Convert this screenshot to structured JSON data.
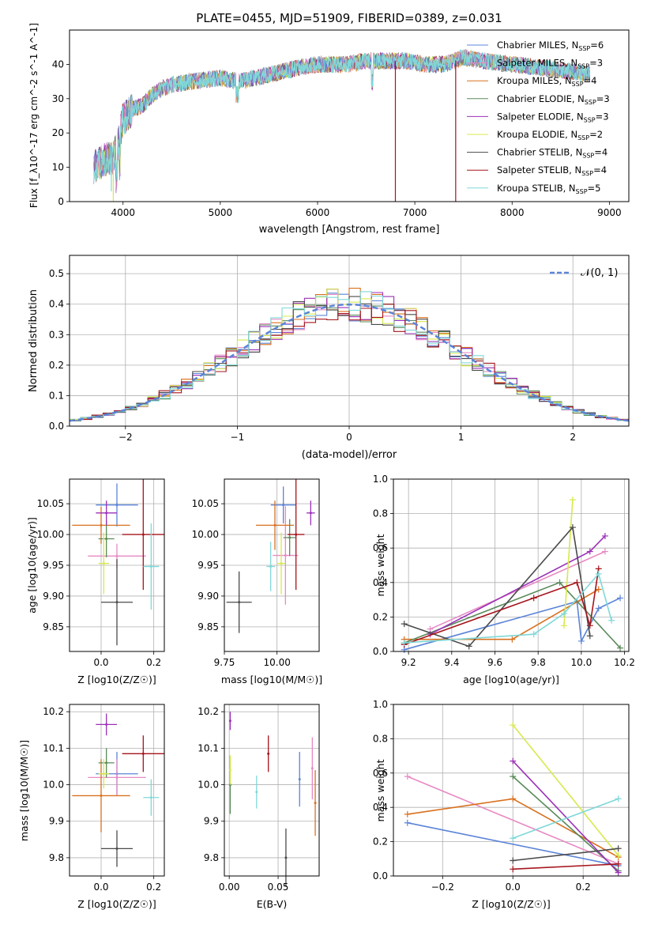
{
  "title": "PLATE=0455, MJD=51909, FIBERID=0389, z=0.031",
  "colors": {
    "chabrier_miles": "#5b84d8",
    "salpeter_miles": "#e78ac3",
    "kroupa_miles": "#d9711f",
    "chabrier_elodie": "#5a8a5a",
    "salpeter_elodie": "#9b30b8",
    "kroupa_elodie": "#d8e84e",
    "chabrier_stelib": "#4a4a4a",
    "salpeter_stelib": "#a6141c",
    "kroupa_stelib": "#7fd8d8",
    "normal_curve": "#5b84d8"
  },
  "chart_data": [
    {
      "type": "line",
      "panel": "spectrum",
      "xlabel": "wavelength [Angstrom, rest frame]",
      "ylabel": "Flux [f_λ10^-17 erg cm^-2 s^-1 A^-1]",
      "xlim": [
        3450,
        9200
      ],
      "ylim": [
        0,
        50
      ],
      "xticks": [
        "4000",
        "5000",
        "6000",
        "7000",
        "8000",
        "9000"
      ],
      "yticks": [
        "0",
        "10",
        "20",
        "30",
        "40"
      ],
      "grid": false,
      "legend_position": "upper right",
      "legend": [
        {
          "label": "Chabrier MILES, N_SSP=6",
          "color_key": "chabrier_miles"
        },
        {
          "label": "Salpeter MILES, N_SSP=3",
          "color_key": "salpeter_miles"
        },
        {
          "label": "Kroupa MILES, N_SSP=4",
          "color_key": "kroupa_miles"
        },
        {
          "label": "Chabrier ELODIE, N_SSP=3",
          "color_key": "chabrier_elodie"
        },
        {
          "label": "Salpeter ELODIE, N_SSP=3",
          "color_key": "salpeter_elodie"
        },
        {
          "label": "Kroupa ELODIE, N_SSP=2",
          "color_key": "kroupa_elodie"
        },
        {
          "label": "Chabrier STELIB, N_SSP=4",
          "color_key": "chabrier_stelib"
        },
        {
          "label": "Salpeter STELIB, N_SSP=4",
          "color_key": "salpeter_stelib"
        },
        {
          "label": "Kroupa STELIB, N_SSP=5",
          "color_key": "kroupa_stelib"
        }
      ],
      "continuum": {
        "x": [
          3700,
          3800,
          3900,
          3950,
          4000,
          4100,
          4200,
          4300,
          4400,
          4500,
          4700,
          5000,
          5200,
          5500,
          5800,
          6000,
          6300,
          6500,
          6700,
          6900,
          7100,
          7300,
          7500,
          7700,
          8000,
          8300,
          8600,
          8800
        ],
        "y": [
          10,
          12,
          13,
          17,
          24,
          27,
          28,
          31,
          33,
          34,
          35,
          36,
          35,
          37,
          39,
          40,
          40,
          41,
          41,
          41,
          40,
          40,
          42,
          41,
          40,
          39,
          38,
          37
        ]
      },
      "features": [
        {
          "model": "kroupa_elodie",
          "x": 3900,
          "y_min": 0
        },
        {
          "model": "salpeter_stelib",
          "x": 6800,
          "y_min": 0
        },
        {
          "model": "salpeter_stelib",
          "x": 7420,
          "y_min": 0
        },
        {
          "model": "kroupa_stelib",
          "x": 3880,
          "y_min": 3
        }
      ]
    },
    {
      "type": "histogram",
      "panel": "residuals",
      "xlabel": "(data-model)/error",
      "ylabel": "Normed distribution",
      "xlim": [
        -2.5,
        2.5
      ],
      "ylim": [
        0,
        0.56
      ],
      "xticks": [
        "−2",
        "−1",
        "0",
        "1",
        "2"
      ],
      "yticks": [
        "0.0",
        "0.1",
        "0.2",
        "0.3",
        "0.4",
        "0.5"
      ],
      "grid": true,
      "bin_width": 0.1,
      "legend": [
        {
          "label": "𝒩(0, 1)",
          "color_key": "normal_curve",
          "style": "dashed"
        }
      ],
      "legend_position": "upper right"
    },
    {
      "type": "scatter",
      "panel": "age_vs_Z",
      "xlabel": "Z [log10(Z/Z☉)]",
      "ylabel": "age  [log10(age/yr)]",
      "xlim": [
        -0.12,
        0.24
      ],
      "ylim": [
        9.81,
        10.09
      ],
      "xticks": [
        "0.0",
        "0.2"
      ],
      "yticks": [
        "9.85",
        "9.90",
        "9.95",
        "10.00",
        "10.05"
      ],
      "grid": true,
      "points": [
        {
          "model": "chabrier_miles",
          "x": 0.06,
          "y": 10.048,
          "xerr": 0.08,
          "yerr": 0.035
        },
        {
          "model": "salpeter_miles",
          "x": 0.06,
          "y": 9.965,
          "xerr": 0.11,
          "yerr": 0.02
        },
        {
          "model": "kroupa_miles",
          "x": 0.0,
          "y": 10.015,
          "xerr": 0.11,
          "yerr": 0.03
        },
        {
          "model": "chabrier_elodie",
          "x": 0.02,
          "y": 9.993,
          "xerr": 0.03,
          "yerr": 0.03
        },
        {
          "model": "salpeter_elodie",
          "x": 0.02,
          "y": 10.035,
          "xerr": 0.04,
          "yerr": 0.02
        },
        {
          "model": "kroupa_elodie",
          "x": 0.01,
          "y": 9.953,
          "xerr": 0.02,
          "yerr": 0.05
        },
        {
          "model": "chabrier_stelib",
          "x": 0.06,
          "y": 9.89,
          "xerr": 0.06,
          "yerr": 0.07
        },
        {
          "model": "salpeter_stelib",
          "x": 0.16,
          "y": 10.0,
          "xerr": 0.08,
          "yerr": 0.09
        },
        {
          "model": "kroupa_stelib",
          "x": 0.19,
          "y": 9.948,
          "xerr": 0.03,
          "yerr": 0.07
        }
      ]
    },
    {
      "type": "scatter",
      "panel": "age_vs_mass",
      "xlabel": "mass [log10(M/M☉)]",
      "ylabel": "",
      "xlim": [
        9.75,
        10.2
      ],
      "ylim": [
        9.81,
        10.09
      ],
      "xticks": [
        "9.75",
        "10.00"
      ],
      "yticks": [
        "9.85",
        "9.90",
        "9.95",
        "10.00",
        "10.05"
      ],
      "grid": true,
      "points": [
        {
          "model": "chabrier_miles",
          "x": 10.03,
          "y": 10.048,
          "xerr": 0.06,
          "yerr": 0.03
        },
        {
          "model": "salpeter_miles",
          "x": 10.04,
          "y": 9.966,
          "xerr": 0.06,
          "yerr": 0.08
        },
        {
          "model": "kroupa_miles",
          "x": 9.99,
          "y": 10.015,
          "xerr": 0.09,
          "yerr": 0.04
        },
        {
          "model": "chabrier_elodie",
          "x": 10.06,
          "y": 9.995,
          "xerr": 0.03,
          "yerr": 0.03
        },
        {
          "model": "salpeter_elodie",
          "x": 10.16,
          "y": 10.035,
          "xerr": 0.02,
          "yerr": 0.02
        },
        {
          "model": "kroupa_elodie",
          "x": 10.02,
          "y": 9.953,
          "xerr": 0.02,
          "yerr": 0.05
        },
        {
          "model": "chabrier_stelib",
          "x": 9.82,
          "y": 9.89,
          "xerr": 0.06,
          "yerr": 0.05
        },
        {
          "model": "salpeter_stelib",
          "x": 10.09,
          "y": 10.0,
          "xerr": 0.04,
          "yerr": 0.09
        },
        {
          "model": "kroupa_stelib",
          "x": 9.97,
          "y": 9.948,
          "xerr": 0.02,
          "yerr": 0.04
        }
      ]
    },
    {
      "type": "line",
      "panel": "mass_weight_vs_age",
      "xlabel": "age  [log10(age/yr)]",
      "ylabel": "mass weight",
      "xlim": [
        9.13,
        10.22
      ],
      "ylim": [
        0,
        1.0
      ],
      "xticks": [
        "9.2",
        "9.4",
        "9.6",
        "9.8",
        "10.0",
        "10.2"
      ],
      "yticks": [
        "0.0",
        "0.2",
        "0.4",
        "0.6",
        "0.8",
        "1.0"
      ],
      "grid": true,
      "series": [
        {
          "model": "chabrier_miles",
          "x": [
            9.18,
            9.98,
            10.0,
            10.08,
            10.18
          ],
          "y": [
            0.01,
            0.29,
            0.06,
            0.25,
            0.31
          ]
        },
        {
          "model": "salpeter_miles",
          "x": [
            9.3,
            10.11
          ],
          "y": [
            0.13,
            0.58
          ]
        },
        {
          "model": "kroupa_miles",
          "x": [
            9.18,
            9.68,
            10.08
          ],
          "y": [
            0.07,
            0.07,
            0.36
          ]
        },
        {
          "model": "chabrier_elodie",
          "x": [
            9.18,
            9.9,
            10.18
          ],
          "y": [
            0.05,
            0.4,
            0.02
          ]
        },
        {
          "model": "salpeter_elodie",
          "x": [
            9.3,
            10.04,
            10.11
          ],
          "y": [
            0.1,
            0.58,
            0.67
          ]
        },
        {
          "model": "kroupa_elodie",
          "x": [
            9.92,
            9.96
          ],
          "y": [
            0.15,
            0.88
          ]
        },
        {
          "model": "chabrier_stelib",
          "x": [
            9.18,
            9.48,
            9.96,
            10.04
          ],
          "y": [
            0.16,
            0.03,
            0.72,
            0.09
          ]
        },
        {
          "model": "salpeter_stelib",
          "x": [
            9.18,
            9.78,
            9.98,
            10.04,
            10.08
          ],
          "y": [
            0.04,
            0.31,
            0.4,
            0.15,
            0.48
          ]
        },
        {
          "model": "kroupa_stelib",
          "x": [
            9.18,
            9.78,
            9.92,
            10.08,
            10.14
          ],
          "y": [
            0.05,
            0.1,
            0.22,
            0.45,
            0.18
          ]
        }
      ]
    },
    {
      "type": "scatter",
      "panel": "mass_vs_Z",
      "xlabel": "Z [log10(Z/Z☉)]",
      "ylabel": "mass [log10(M/M☉)]",
      "xlim": [
        -0.12,
        0.24
      ],
      "ylim": [
        9.75,
        10.22
      ],
      "xticks": [
        "0.0",
        "0.2"
      ],
      "yticks": [
        "9.8",
        "9.9",
        "10.0",
        "10.1",
        "10.2"
      ],
      "grid": true,
      "points": [
        {
          "model": "chabrier_miles",
          "x": 0.06,
          "y": 10.03,
          "xerr": 0.08,
          "yerr": 0.06
        },
        {
          "model": "salpeter_miles",
          "x": 0.06,
          "y": 10.02,
          "xerr": 0.11,
          "yerr": 0.05
        },
        {
          "model": "kroupa_miles",
          "x": 0.0,
          "y": 9.97,
          "xerr": 0.11,
          "yerr": 0.1
        },
        {
          "model": "chabrier_elodie",
          "x": 0.02,
          "y": 10.06,
          "xerr": 0.03,
          "yerr": 0.04
        },
        {
          "model": "salpeter_elodie",
          "x": 0.02,
          "y": 10.165,
          "xerr": 0.04,
          "yerr": 0.03
        },
        {
          "model": "kroupa_elodie",
          "x": 0.01,
          "y": 10.03,
          "xerr": 0.02,
          "yerr": 0.04
        },
        {
          "model": "chabrier_stelib",
          "x": 0.06,
          "y": 9.825,
          "xerr": 0.06,
          "yerr": 0.05
        },
        {
          "model": "salpeter_stelib",
          "x": 0.16,
          "y": 10.085,
          "xerr": 0.08,
          "yerr": 0.05
        },
        {
          "model": "kroupa_stelib",
          "x": 0.19,
          "y": 9.965,
          "xerr": 0.03,
          "yerr": 0.05
        }
      ]
    },
    {
      "type": "scatter",
      "panel": "mass_vs_ebv",
      "xlabel": "E(B-V)",
      "ylabel": "",
      "xlim": [
        -0.005,
        0.092
      ],
      "ylim": [
        9.75,
        10.22
      ],
      "xticks": [
        "0.00",
        "0.05"
      ],
      "yticks": [
        "9.8",
        "9.9",
        "10.0",
        "10.1",
        "10.2"
      ],
      "grid": true,
      "points": [
        {
          "model": "chabrier_miles",
          "x": 0.072,
          "y": 10.015,
          "xerr": 0,
          "yerr": 0.075
        },
        {
          "model": "salpeter_miles",
          "x": 0.085,
          "y": 10.045,
          "xerr": 0,
          "yerr": 0.085
        },
        {
          "model": "kroupa_miles",
          "x": 0.088,
          "y": 9.95,
          "xerr": 0,
          "yerr": 0.09
        },
        {
          "model": "chabrier_elodie",
          "x": 0.001,
          "y": 10.0,
          "xerr": 0,
          "yerr": 0.08
        },
        {
          "model": "salpeter_elodie",
          "x": 0.001,
          "y": 10.175,
          "xerr": 0,
          "yerr": 0.025
        },
        {
          "model": "kroupa_elodie",
          "x": 0.001,
          "y": 10.04,
          "xerr": 0,
          "yerr": 0.04
        },
        {
          "model": "chabrier_stelib",
          "x": 0.058,
          "y": 9.8,
          "xerr": 0,
          "yerr": 0.08
        },
        {
          "model": "salpeter_stelib",
          "x": 0.04,
          "y": 10.085,
          "xerr": 0,
          "yerr": 0.05
        },
        {
          "model": "kroupa_stelib",
          "x": 0.028,
          "y": 9.98,
          "xerr": 0,
          "yerr": 0.045
        }
      ]
    },
    {
      "type": "line",
      "panel": "mass_weight_vs_Z",
      "xlabel": "Z [log10(Z/Z☉)]",
      "ylabel": "mass weight",
      "xlim": [
        -0.34,
        0.33
      ],
      "ylim": [
        0,
        1.0
      ],
      "xticks": [
        "−0.2",
        "0.0",
        "0.2"
      ],
      "yticks": [
        "0.0",
        "0.2",
        "0.4",
        "0.6",
        "0.8",
        "1.0"
      ],
      "grid": true,
      "series": [
        {
          "model": "chabrier_miles",
          "x": [
            -0.3,
            0.3
          ],
          "y": [
            0.31,
            0.06
          ]
        },
        {
          "model": "salpeter_miles",
          "x": [
            -0.3,
            0.3
          ],
          "y": [
            0.58,
            0.07
          ]
        },
        {
          "model": "kroupa_miles",
          "x": [
            -0.3,
            0.0,
            0.3
          ],
          "y": [
            0.36,
            0.45,
            0.11
          ]
        },
        {
          "model": "chabrier_elodie",
          "x": [
            0.0,
            0.3
          ],
          "y": [
            0.58,
            0.03
          ]
        },
        {
          "model": "salpeter_elodie",
          "x": [
            0.0,
            0.3
          ],
          "y": [
            0.67,
            0.02
          ]
        },
        {
          "model": "kroupa_elodie",
          "x": [
            0.0,
            0.3
          ],
          "y": [
            0.88,
            0.12
          ]
        },
        {
          "model": "chabrier_stelib",
          "x": [
            0.0,
            0.3
          ],
          "y": [
            0.09,
            0.16
          ]
        },
        {
          "model": "salpeter_stelib",
          "x": [
            0.0,
            0.3
          ],
          "y": [
            0.04,
            0.07
          ]
        },
        {
          "model": "kroupa_stelib",
          "x": [
            0.0,
            0.3
          ],
          "y": [
            0.22,
            0.45
          ]
        }
      ]
    }
  ]
}
